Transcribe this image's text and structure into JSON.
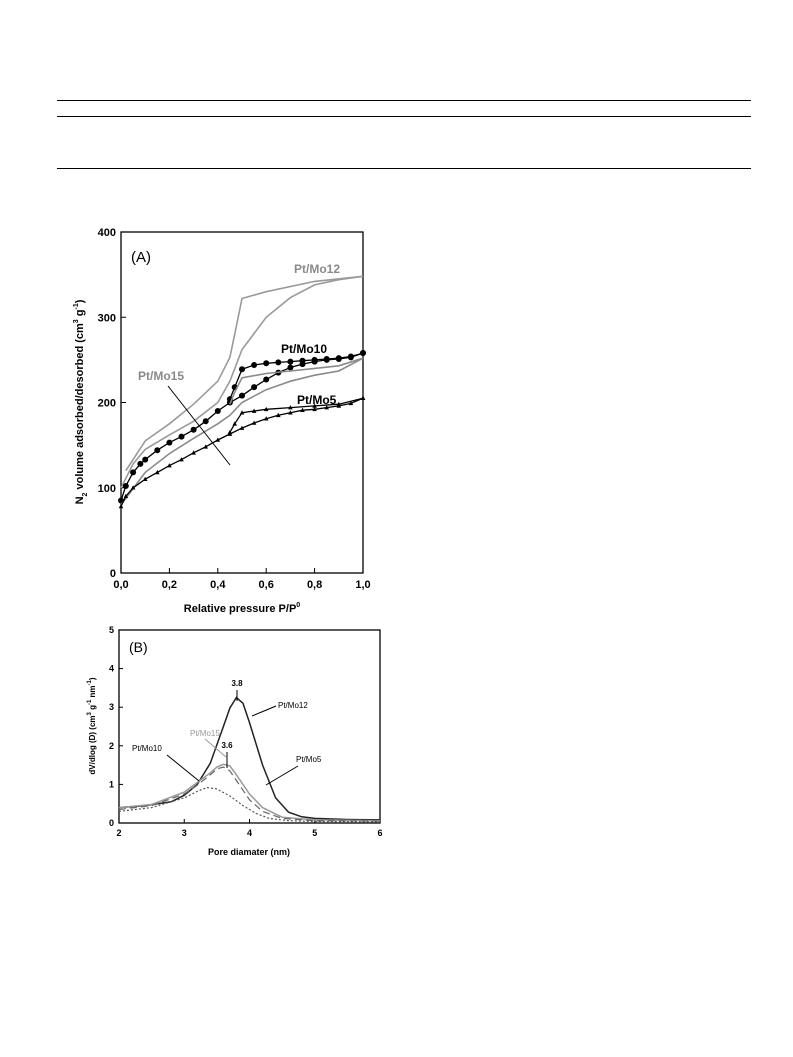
{
  "chart_data": [
    {
      "type": "line",
      "panel_label": "(A)",
      "xlabel": "Relative pressure P/P",
      "xlabel_sup": "0",
      "ylabel": "N",
      "ylabel_sub": "2",
      "ylabel_rest": " volume adsorbed/desorbed (cm",
      "ylabel_sup1": "3",
      "ylabel_mid": " g",
      "ylabel_sup2": "-1",
      "ylabel_end": ")",
      "xlim": [
        0,
        1
      ],
      "ylim": [
        0,
        400
      ],
      "x_ticks": [
        "0,0",
        "0,2",
        "0,4",
        "0,6",
        "0,8",
        "1,0"
      ],
      "y_ticks": [
        "0",
        "100",
        "200",
        "300",
        "400"
      ],
      "grid": false,
      "series": [
        {
          "name": "Pt/Mo12",
          "color": "#9a9a9a",
          "marker": "none",
          "adsorption": [
            [
              0.0,
              100
            ],
            [
              0.05,
              128
            ],
            [
              0.1,
              145
            ],
            [
              0.2,
              162
            ],
            [
              0.3,
              178
            ],
            [
              0.4,
              200
            ],
            [
              0.45,
              225
            ],
            [
              0.5,
              262
            ],
            [
              0.6,
              300
            ],
            [
              0.7,
              323
            ],
            [
              0.8,
              338
            ],
            [
              0.9,
              344
            ],
            [
              1.0,
              348
            ]
          ],
          "desorption": [
            [
              1.0,
              348
            ],
            [
              0.8,
              342
            ],
            [
              0.6,
              330
            ],
            [
              0.5,
              322
            ],
            [
              0.47,
              280
            ],
            [
              0.45,
              253
            ],
            [
              0.4,
              225
            ],
            [
              0.3,
              198
            ],
            [
              0.2,
              175
            ],
            [
              0.1,
              155
            ],
            [
              0.02,
              120
            ]
          ]
        },
        {
          "name": "Pt/Mo10",
          "color": "#000000",
          "marker": "circle",
          "adsorption": [
            [
              0.0,
              85
            ],
            [
              0.02,
              102
            ],
            [
              0.05,
              118
            ],
            [
              0.08,
              128
            ],
            [
              0.1,
              133
            ],
            [
              0.15,
              144
            ],
            [
              0.2,
              153
            ],
            [
              0.25,
              160
            ],
            [
              0.3,
              168
            ],
            [
              0.35,
              178
            ],
            [
              0.4,
              190
            ],
            [
              0.45,
              200
            ],
            [
              0.5,
              208
            ],
            [
              0.55,
              218
            ],
            [
              0.6,
              227
            ],
            [
              0.65,
              235
            ],
            [
              0.7,
              241
            ],
            [
              0.75,
              245
            ],
            [
              0.8,
              248
            ],
            [
              0.85,
              250
            ],
            [
              0.9,
              251
            ],
            [
              0.95,
              253
            ],
            [
              1.0,
              258
            ]
          ],
          "desorption": [
            [
              1.0,
              258
            ],
            [
              0.95,
              254
            ],
            [
              0.9,
              252
            ],
            [
              0.85,
              251
            ],
            [
              0.8,
              250
            ],
            [
              0.75,
              249
            ],
            [
              0.7,
              248
            ],
            [
              0.65,
              247
            ],
            [
              0.6,
              246
            ],
            [
              0.55,
              244
            ],
            [
              0.5,
              239
            ],
            [
              0.47,
              218
            ],
            [
              0.45,
              204
            ]
          ]
        },
        {
          "name": "Pt/Mo15",
          "color": "#8a8a8a",
          "marker": "none",
          "adsorption": [
            [
              0.0,
              80
            ],
            [
              0.1,
              118
            ],
            [
              0.2,
              140
            ],
            [
              0.3,
              158
            ],
            [
              0.4,
              175
            ],
            [
              0.45,
              185
            ],
            [
              0.5,
              200
            ],
            [
              0.6,
              215
            ],
            [
              0.7,
              225
            ],
            [
              0.8,
              232
            ],
            [
              0.9,
              237
            ],
            [
              1.0,
              252
            ]
          ],
          "desorption": [
            [
              1.0,
              252
            ],
            [
              0.9,
              243
            ],
            [
              0.8,
              240
            ],
            [
              0.7,
              237
            ],
            [
              0.6,
              234
            ],
            [
              0.5,
              229
            ],
            [
              0.47,
              212
            ],
            [
              0.45,
              198
            ]
          ]
        },
        {
          "name": "Pt/Mo5",
          "color": "#000000",
          "marker": "triangle",
          "adsorption": [
            [
              0.0,
              78
            ],
            [
              0.02,
              90
            ],
            [
              0.05,
              100
            ],
            [
              0.1,
              110
            ],
            [
              0.15,
              118
            ],
            [
              0.2,
              126
            ],
            [
              0.25,
              133
            ],
            [
              0.3,
              141
            ],
            [
              0.35,
              148
            ],
            [
              0.4,
              156
            ],
            [
              0.45,
              163
            ],
            [
              0.5,
              170
            ],
            [
              0.55,
              176
            ],
            [
              0.6,
              181
            ],
            [
              0.65,
              185
            ],
            [
              0.7,
              188
            ],
            [
              0.75,
              191
            ],
            [
              0.8,
              192
            ],
            [
              0.85,
              194
            ],
            [
              0.9,
              196
            ],
            [
              0.95,
              199
            ],
            [
              1.0,
              205
            ]
          ],
          "desorption": [
            [
              1.0,
              205
            ],
            [
              0.9,
              198
            ],
            [
              0.8,
              196
            ],
            [
              0.7,
              194
            ],
            [
              0.6,
              192
            ],
            [
              0.55,
              190
            ],
            [
              0.5,
              188
            ],
            [
              0.47,
              175
            ],
            [
              0.45,
              165
            ]
          ]
        }
      ],
      "annotations": [
        {
          "text": "Pt/Mo12",
          "color": "#8a8a8a"
        },
        {
          "text": "Pt/Mo10",
          "color": "#000000"
        },
        {
          "text": "Pt/Mo15",
          "color": "#8a8a8a"
        },
        {
          "text": "Pt/Mo5",
          "color": "#000000"
        }
      ]
    },
    {
      "type": "line",
      "panel_label": "(B)",
      "xlabel": "Pore diamater (nm)",
      "ylabel": "dV/dlog (D) (cm",
      "ylabel_sup1": "3",
      "ylabel_mid": " g",
      "ylabel_sup2": "-1",
      "ylabel_mid2": " nm",
      "ylabel_sup3": "-1",
      "ylabel_end": ")",
      "xlim": [
        2,
        6
      ],
      "ylim": [
        0,
        5
      ],
      "x_ticks": [
        "2",
        "3",
        "4",
        "5",
        "6"
      ],
      "y_ticks": [
        "0",
        "1",
        "2",
        "3",
        "4",
        "5"
      ],
      "grid": false,
      "series": [
        {
          "name": "Pt/Mo12",
          "color": "#222222",
          "dash": "none",
          "points": [
            [
              2.0,
              0.4
            ],
            [
              2.4,
              0.45
            ],
            [
              2.8,
              0.55
            ],
            [
              3.0,
              0.72
            ],
            [
              3.2,
              1.0
            ],
            [
              3.4,
              1.55
            ],
            [
              3.6,
              2.5
            ],
            [
              3.7,
              2.98
            ],
            [
              3.8,
              3.25
            ],
            [
              3.9,
              3.1
            ],
            [
              4.0,
              2.6
            ],
            [
              4.2,
              1.5
            ],
            [
              4.4,
              0.65
            ],
            [
              4.6,
              0.28
            ],
            [
              4.8,
              0.16
            ],
            [
              5.0,
              0.12
            ],
            [
              5.5,
              0.09
            ],
            [
              6.0,
              0.08
            ]
          ]
        },
        {
          "name": "Pt/Mo15",
          "color": "#999999",
          "dash": "none",
          "points": [
            [
              2.0,
              0.4
            ],
            [
              2.5,
              0.48
            ],
            [
              3.0,
              0.8
            ],
            [
              3.2,
              1.05
            ],
            [
              3.4,
              1.3
            ],
            [
              3.5,
              1.45
            ],
            [
              3.6,
              1.52
            ],
            [
              3.7,
              1.48
            ],
            [
              3.8,
              1.25
            ],
            [
              4.0,
              0.75
            ],
            [
              4.2,
              0.4
            ],
            [
              4.5,
              0.15
            ],
            [
              5.0,
              0.08
            ],
            [
              6.0,
              0.06
            ]
          ]
        },
        {
          "name": "Pt/Mo10",
          "color": "#666666",
          "dash": "7 4",
          "points": [
            [
              2.0,
              0.35
            ],
            [
              2.5,
              0.45
            ],
            [
              3.0,
              0.75
            ],
            [
              3.2,
              0.98
            ],
            [
              3.4,
              1.25
            ],
            [
              3.5,
              1.4
            ],
            [
              3.6,
              1.45
            ],
            [
              3.7,
              1.35
            ],
            [
              3.8,
              1.1
            ],
            [
              4.0,
              0.6
            ],
            [
              4.2,
              0.3
            ],
            [
              4.5,
              0.12
            ],
            [
              5.0,
              0.06
            ],
            [
              6.0,
              0.05
            ]
          ]
        },
        {
          "name": "Pt/Mo5",
          "color": "#555555",
          "dash": "2 2",
          "points": [
            [
              2.0,
              0.3
            ],
            [
              2.5,
              0.4
            ],
            [
              3.0,
              0.65
            ],
            [
              3.2,
              0.82
            ],
            [
              3.35,
              0.92
            ],
            [
              3.5,
              0.88
            ],
            [
              3.7,
              0.7
            ],
            [
              3.9,
              0.45
            ],
            [
              4.1,
              0.25
            ],
            [
              4.3,
              0.12
            ],
            [
              4.6,
              0.06
            ],
            [
              5.0,
              0.04
            ],
            [
              6.0,
              0.03
            ]
          ]
        }
      ],
      "peak_labels": [
        "3.8",
        "3.6"
      ],
      "annotations": [
        {
          "text": "Pt/Mo12",
          "color": "#000000"
        },
        {
          "text": "Pt/Mo15",
          "color": "#999999"
        },
        {
          "text": "Pt/Mo10",
          "color": "#000000"
        },
        {
          "text": "Pt/Mo5",
          "color": "#000000"
        }
      ]
    }
  ]
}
